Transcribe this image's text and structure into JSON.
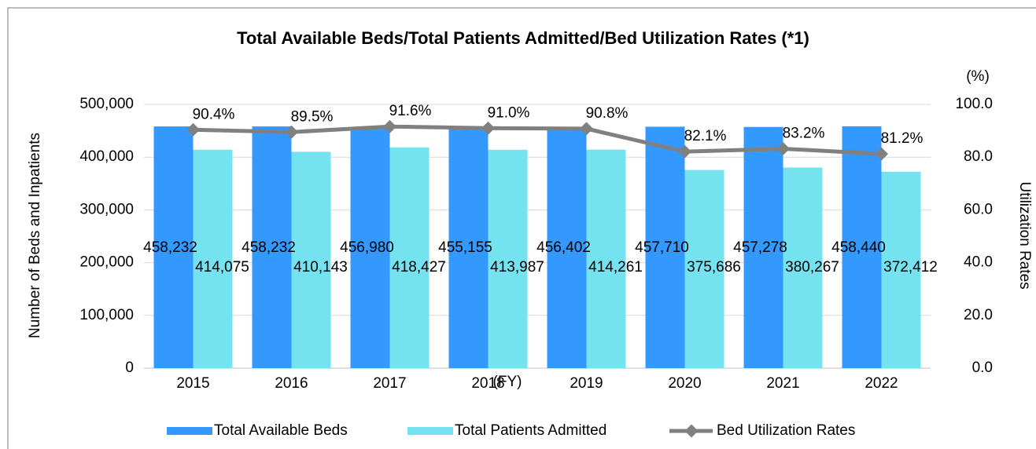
{
  "chart_data": {
    "type": "bar_line",
    "title": "Total Available Beds/Total Patients Admitted/Bed Utilization Rates (*1)",
    "x_label": "(FY)",
    "y_label": "Number of Beds and Inpatients",
    "y2_label": "Utilization Rates",
    "y2_unit": "(%)",
    "categories": [
      "2015",
      "2016",
      "2017",
      "2018",
      "2019",
      "2020",
      "2021",
      "2022"
    ],
    "series": [
      {
        "name": "Total Available Beds",
        "type": "bar",
        "color": "#3399ff",
        "values": [
          458232,
          458232,
          456980,
          455155,
          456402,
          457710,
          457278,
          458440
        ],
        "value_labels": [
          "458,232",
          "458,232",
          "456,980",
          "455,155",
          "456,402",
          "457,710",
          "457,278",
          "458,440"
        ]
      },
      {
        "name": "Total Patients Admitted",
        "type": "bar",
        "color": "#75e2f0",
        "values": [
          414075,
          410143,
          418427,
          413987,
          414261,
          375686,
          380267,
          372412
        ],
        "value_labels": [
          "414,075",
          "410,143",
          "418,427",
          "413,987",
          "414,261",
          "375,686",
          "380,267",
          "372,412"
        ]
      },
      {
        "name": "Bed Utilization Rates",
        "type": "line",
        "color": "#808080",
        "axis": "y2",
        "values": [
          90.4,
          89.5,
          91.6,
          91.0,
          90.8,
          82.1,
          83.2,
          81.2
        ],
        "value_labels": [
          "90.4%",
          "89.5%",
          "91.6%",
          "91.0%",
          "90.8%",
          "82.1%",
          "83.2%",
          "81.2%"
        ]
      }
    ],
    "ylim": [
      0,
      500000
    ],
    "yticks": [
      0,
      {
        "value": 100000,
        "label": "100,000"
      },
      {
        "value": 200000,
        "label": "200,000"
      },
      {
        "value": 300000,
        "label": "300,000"
      },
      {
        "value": 400000,
        "label": "400,000"
      },
      {
        "value": 500000,
        "label": "500,000"
      }
    ],
    "y2lim": [
      0,
      100
    ],
    "y2ticks": [
      {
        "value": 0,
        "label": "0.0"
      },
      {
        "value": 20,
        "label": "20.0"
      },
      {
        "value": 40,
        "label": "40.0"
      },
      {
        "value": 60,
        "label": "60.0"
      },
      {
        "value": 80,
        "label": "80.0"
      },
      {
        "value": 100,
        "label": "100.0"
      }
    ],
    "grid": true,
    "legend": "bottom"
  }
}
